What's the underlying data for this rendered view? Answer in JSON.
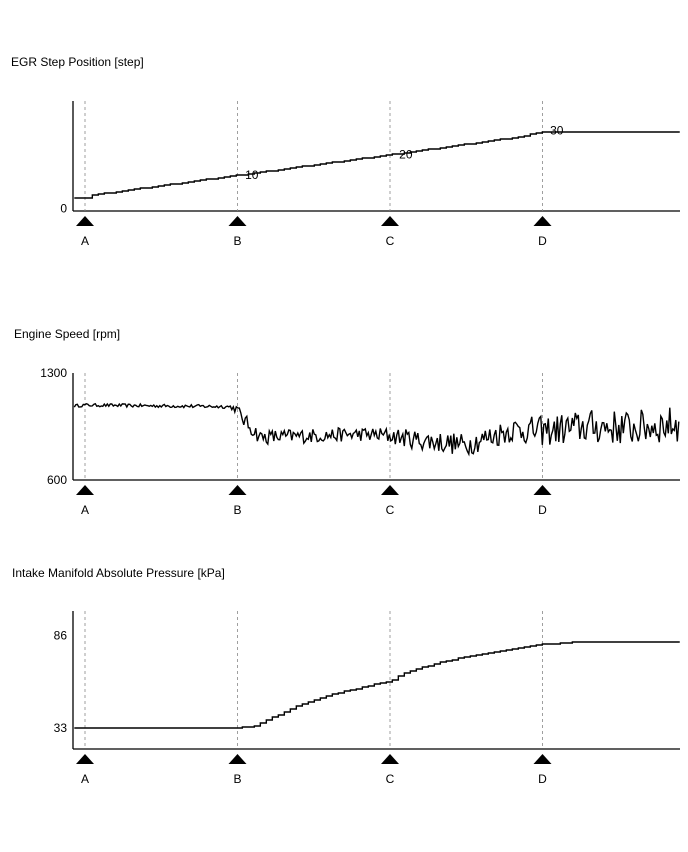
{
  "chart_data": [
    {
      "type": "line",
      "title": "EGR Step Position [step]",
      "y_ticks": [
        {
          "label": "0",
          "value": 0
        }
      ],
      "ylim": [
        -1,
        42
      ],
      "x": [
        "A",
        "B",
        "C",
        "D"
      ],
      "xlim": [
        -0.07,
        3.9
      ],
      "grid": false,
      "value_labels": [
        {
          "text": "10",
          "x": 1.05,
          "y": 11.5
        },
        {
          "text": "20",
          "x": 2.06,
          "y": 19.5
        },
        {
          "text": "30",
          "x": 3.05,
          "y": 29.0
        }
      ],
      "series": [
        {
          "mode": "steps",
          "values": [
            [
              -0.07,
              4
            ],
            [
              0.02,
              4
            ],
            [
              0.02,
              5
            ],
            [
              1.0,
              13
            ],
            [
              2.0,
              21
            ],
            [
              2.85,
              28
            ],
            [
              3.0,
              30
            ],
            [
              3.9,
              30
            ]
          ]
        }
      ]
    },
    {
      "type": "line",
      "title": "Engine Speed [rpm]",
      "y_ticks": [
        {
          "label": "1300",
          "value": 1300
        },
        {
          "label": "600",
          "value": 600
        }
      ],
      "ylim": [
        600,
        1300
      ],
      "x": [
        "A",
        "B",
        "C",
        "D"
      ],
      "xlim": [
        -0.07,
        3.9
      ],
      "grid": false,
      "series": [
        {
          "mode": "noisy",
          "values": [
            [
              -0.07,
              1085
            ],
            [
              0.0,
              1090
            ],
            [
              0.5,
              1085
            ],
            [
              0.95,
              1080
            ],
            [
              1.0,
              1060
            ],
            [
              1.05,
              980
            ],
            [
              1.15,
              880
            ],
            [
              1.5,
              890
            ],
            [
              1.8,
              900
            ],
            [
              2.0,
              890
            ],
            [
              2.2,
              860
            ],
            [
              2.5,
              830
            ],
            [
              2.65,
              880
            ],
            [
              2.8,
              930
            ],
            [
              3.0,
              920
            ],
            [
              3.3,
              950
            ],
            [
              3.6,
              940
            ],
            [
              3.9,
              970
            ]
          ],
          "noise": [
            [
              -0.07,
              10
            ],
            [
              0.95,
              12
            ],
            [
              1.05,
              50
            ],
            [
              1.8,
              45
            ],
            [
              2.3,
              70
            ],
            [
              2.6,
              75
            ],
            [
              2.8,
              85
            ],
            [
              3.2,
              110
            ],
            [
              3.9,
              120
            ]
          ]
        }
      ]
    },
    {
      "type": "line",
      "title": "Intake Manifold Absolute Pressure [kPa]",
      "y_ticks": [
        {
          "label": "86",
          "value": 86
        },
        {
          "label": "33",
          "value": 33
        }
      ],
      "ylim": [
        21,
        100
      ],
      "x": [
        "A",
        "B",
        "C",
        "D"
      ],
      "xlim": [
        -0.07,
        3.9
      ],
      "grid": false,
      "series": [
        {
          "mode": "steps",
          "values": [
            [
              -0.07,
              33
            ],
            [
              0.95,
              33
            ],
            [
              1.1,
              34
            ],
            [
              1.2,
              38
            ],
            [
              1.4,
              46
            ],
            [
              1.6,
              52
            ],
            [
              1.8,
              56
            ],
            [
              2.0,
              60
            ],
            [
              2.1,
              65
            ],
            [
              2.3,
              70
            ],
            [
              2.5,
              74
            ],
            [
              2.8,
              78
            ],
            [
              3.0,
              81
            ],
            [
              3.2,
              82
            ],
            [
              3.9,
              82
            ]
          ]
        }
      ]
    }
  ]
}
